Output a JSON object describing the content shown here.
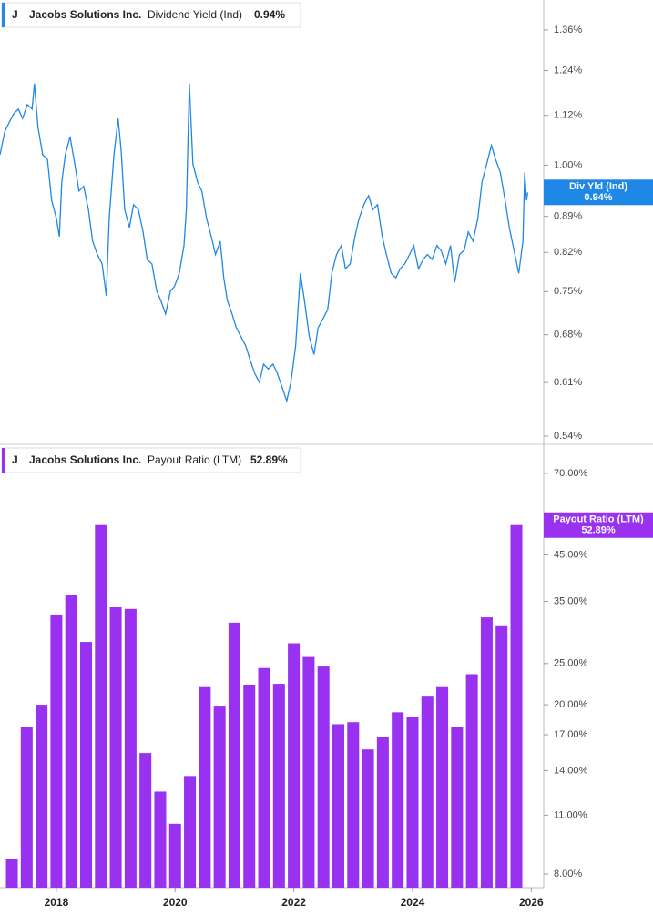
{
  "chart_data": [
    {
      "type": "line",
      "ticker": "J",
      "company": "Jacobs Solutions Inc.",
      "log_scale": true,
      "tag_label": "Div Yld (Ind)",
      "current": {
        "value": 0.94,
        "label": "0.94%"
      },
      "xlim": [
        2017.05,
        2026.21
      ],
      "ylim": [
        0.53,
        1.456
      ],
      "yticks": [
        {
          "value": 1.36,
          "label": "1.36%"
        },
        {
          "value": 1.24,
          "label": "1.24%"
        },
        {
          "value": 1.12,
          "label": "1.12%"
        },
        {
          "value": 1.0,
          "label": "1.00%"
        },
        {
          "value": 0.89,
          "label": "0.89%"
        },
        {
          "value": 0.82,
          "label": "0.82%"
        },
        {
          "value": 0.75,
          "label": "0.75%"
        },
        {
          "value": 0.68,
          "label": "0.68%"
        },
        {
          "value": 0.61,
          "label": "0.61%"
        },
        {
          "value": 0.54,
          "label": "0.54%"
        }
      ],
      "series": [
        {
          "name": "Dividend Yield (Ind)",
          "color": "#1f87e5",
          "x": [
            2017.05,
            2017.13,
            2017.2,
            2017.28,
            2017.36,
            2017.43,
            2017.51,
            2017.59,
            2017.63,
            2017.69,
            2017.77,
            2017.85,
            2017.92,
            2018.0,
            2018.05,
            2018.09,
            2018.15,
            2018.23,
            2018.31,
            2018.38,
            2018.46,
            2018.54,
            2018.61,
            2018.69,
            2018.77,
            2018.84,
            2018.89,
            2018.97,
            2019.04,
            2019.09,
            2019.15,
            2019.23,
            2019.3,
            2019.38,
            2019.46,
            2019.53,
            2019.61,
            2019.69,
            2019.76,
            2019.84,
            2019.92,
            2019.99,
            2020.07,
            2020.15,
            2020.19,
            2020.24,
            2020.3,
            2020.38,
            2020.45,
            2020.53,
            2020.61,
            2020.68,
            2020.76,
            2020.82,
            2020.88,
            2020.96,
            2021.03,
            2021.11,
            2021.19,
            2021.26,
            2021.34,
            2021.42,
            2021.49,
            2021.57,
            2021.65,
            2021.72,
            2021.8,
            2021.88,
            2021.95,
            2022.03,
            2022.11,
            2022.18,
            2022.26,
            2022.34,
            2022.41,
            2022.49,
            2022.57,
            2022.64,
            2022.72,
            2022.8,
            2022.87,
            2022.95,
            2023.03,
            2023.1,
            2023.18,
            2023.26,
            2023.33,
            2023.41,
            2023.49,
            2023.56,
            2023.64,
            2023.72,
            2023.79,
            2023.87,
            2023.95,
            2024.02,
            2024.1,
            2024.18,
            2024.25,
            2024.33,
            2024.41,
            2024.48,
            2024.56,
            2024.64,
            2024.71,
            2024.79,
            2024.87,
            2024.94,
            2025.02,
            2025.1,
            2025.17,
            2025.25,
            2025.33,
            2025.4,
            2025.48,
            2025.56,
            2025.63,
            2025.71,
            2025.79,
            2025.86,
            2025.89,
            2025.92,
            2025.94
          ],
          "values": [
            1.024,
            1.079,
            1.101,
            1.124,
            1.136,
            1.112,
            1.148,
            1.136,
            1.204,
            1.09,
            1.024,
            1.013,
            0.923,
            0.886,
            0.85,
            0.962,
            1.024,
            1.067,
            1.003,
            0.943,
            0.953,
            0.904,
            0.841,
            0.816,
            0.799,
            0.743,
            0.886,
            1.024,
            1.112,
            1.035,
            0.904,
            0.868,
            0.914,
            0.904,
            0.859,
            0.807,
            0.799,
            0.751,
            0.735,
            0.713,
            0.751,
            0.759,
            0.782,
            0.833,
            0.904,
            1.204,
            1.003,
            0.962,
            0.943,
            0.886,
            0.85,
            0.816,
            0.841,
            0.774,
            0.735,
            0.713,
            0.691,
            0.677,
            0.663,
            0.643,
            0.623,
            0.61,
            0.636,
            0.629,
            0.636,
            0.623,
            0.604,
            0.585,
            0.61,
            0.663,
            0.782,
            0.735,
            0.677,
            0.65,
            0.691,
            0.705,
            0.72,
            0.782,
            0.816,
            0.833,
            0.79,
            0.799,
            0.85,
            0.886,
            0.914,
            0.933,
            0.904,
            0.914,
            0.85,
            0.816,
            0.782,
            0.774,
            0.79,
            0.799,
            0.816,
            0.833,
            0.79,
            0.807,
            0.816,
            0.807,
            0.833,
            0.824,
            0.799,
            0.833,
            0.766,
            0.816,
            0.824,
            0.859,
            0.841,
            0.886,
            0.962,
            1.003,
            1.046,
            1.013,
            0.983,
            0.923,
            0.868,
            0.824,
            0.782,
            0.841,
            0.983,
            0.923,
            0.94
          ]
        }
      ]
    },
    {
      "type": "bar",
      "ticker": "J",
      "company": "Jacobs Solutions Inc.",
      "log_scale": true,
      "current": {
        "value": 52.89,
        "label": "52.89%"
      },
      "xlim": [
        2017.05,
        2026.21
      ],
      "xticks": [
        2018,
        2020,
        2022,
        2024,
        2026
      ],
      "ylim": [
        7.43,
        81.1
      ],
      "yticks": [
        {
          "value": 70,
          "label": "70.00%"
        },
        {
          "value": 45,
          "label": "45.00%"
        },
        {
          "value": 35,
          "label": "35.00%"
        },
        {
          "value": 25,
          "label": "25.00%"
        },
        {
          "value": 20,
          "label": "20.00%"
        },
        {
          "value": 17,
          "label": "17.00%"
        },
        {
          "value": 14,
          "label": "14.00%"
        },
        {
          "value": 11,
          "label": "11.00%"
        },
        {
          "value": 8,
          "label": "8.00%"
        }
      ],
      "series": [
        {
          "name": "Payout Ratio (LTM)",
          "color": "#9932f0",
          "x": [
            2017.25,
            2017.5,
            2017.75,
            2018.0,
            2018.25,
            2018.5,
            2018.75,
            2019.0,
            2019.25,
            2019.5,
            2019.75,
            2020.0,
            2020.25,
            2020.5,
            2020.75,
            2021.0,
            2021.25,
            2021.5,
            2021.75,
            2022.0,
            2022.25,
            2022.5,
            2022.75,
            2023.0,
            2023.25,
            2023.5,
            2023.75,
            2024.0,
            2024.25,
            2024.5,
            2024.75,
            2025.0,
            2025.25,
            2025.5,
            2025.75
          ],
          "values": [
            8.66,
            17.7,
            20.0,
            32.6,
            36.2,
            28.1,
            52.9,
            33.9,
            33.6,
            15.4,
            12.5,
            10.5,
            13.6,
            22.0,
            19.9,
            31.2,
            22.3,
            24.4,
            22.4,
            27.9,
            25.9,
            24.6,
            18.0,
            18.2,
            15.7,
            16.8,
            19.2,
            18.7,
            20.9,
            22.0,
            17.7,
            23.6,
            32.1,
            30.6,
            52.89
          ]
        }
      ]
    }
  ]
}
